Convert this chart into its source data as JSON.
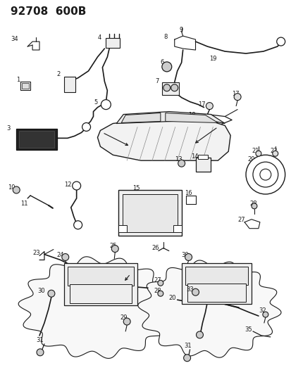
{
  "title": "92708  600B",
  "bg_color": "#ffffff",
  "lc": "#1a1a1a",
  "tc": "#1a1a1a",
  "figsize": [
    4.14,
    5.33
  ],
  "dpi": 100
}
